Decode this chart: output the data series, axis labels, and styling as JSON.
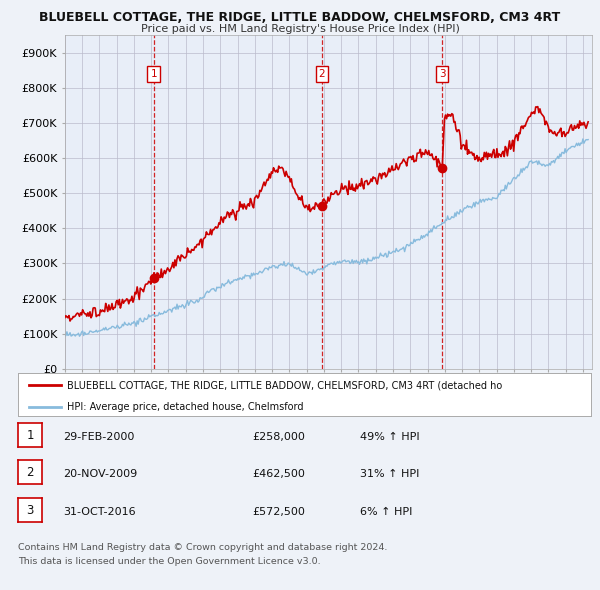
{
  "title1": "BLUEBELL COTTAGE, THE RIDGE, LITTLE BADDOW, CHELMSFORD, CM3 4RT",
  "title2": "Price paid vs. HM Land Registry's House Price Index (HPI)",
  "bg_color": "#eef2f8",
  "plot_bg": "#e8eef8",
  "sale_dates_num": [
    2000.16,
    2009.89,
    2016.84
  ],
  "sale_prices": [
    258000,
    462500,
    572500
  ],
  "sale_labels": [
    "1",
    "2",
    "3"
  ],
  "legend_line1": "BLUEBELL COTTAGE, THE RIDGE, LITTLE BADDOW, CHELMSFORD, CM3 4RT (detached ho",
  "legend_line2": "HPI: Average price, detached house, Chelmsford",
  "table_rows": [
    [
      "1",
      "29-FEB-2000",
      "£258,000",
      "49% ↑ HPI"
    ],
    [
      "2",
      "20-NOV-2009",
      "£462,500",
      "31% ↑ HPI"
    ],
    [
      "3",
      "31-OCT-2016",
      "£572,500",
      "6% ↑ HPI"
    ]
  ],
  "footnote1": "Contains HM Land Registry data © Crown copyright and database right 2024.",
  "footnote2": "This data is licensed under the Open Government Licence v3.0.",
  "ylabel_ticks": [
    0,
    100000,
    200000,
    300000,
    400000,
    500000,
    600000,
    700000,
    800000,
    900000
  ],
  "ylabel_labels": [
    "£0",
    "£100K",
    "£200K",
    "£300K",
    "£400K",
    "£500K",
    "£600K",
    "£700K",
    "£800K",
    "£900K"
  ],
  "xmin": 1995.0,
  "xmax": 2025.5,
  "ymin": 0,
  "ymax": 950000,
  "red_color": "#cc0000",
  "blue_color": "#88bbdd",
  "vline_color": "#cc0000",
  "grid_color": "#bbbbcc",
  "hpi_x_nodes": [
    1995,
    1996,
    1997,
    1998,
    1999,
    2000,
    2001,
    2002,
    2003,
    2004,
    2005,
    2006,
    2007,
    2008,
    2009,
    2010,
    2011,
    2012,
    2013,
    2014,
    2015,
    2016,
    2017,
    2018,
    2019,
    2020,
    2021,
    2022,
    2023,
    2024,
    2025
  ],
  "hpi_y_nodes": [
    95000,
    100000,
    108000,
    118000,
    130000,
    148000,
    165000,
    183000,
    205000,
    235000,
    255000,
    270000,
    290000,
    300000,
    270000,
    290000,
    305000,
    305000,
    315000,
    330000,
    355000,
    385000,
    420000,
    450000,
    475000,
    490000,
    540000,
    590000,
    580000,
    620000,
    650000
  ],
  "red_x_nodes": [
    1995,
    1996,
    1997,
    1998,
    1999,
    2000.16,
    2001,
    2002,
    2003,
    2004,
    2005,
    2006,
    2007,
    2007.5,
    2008,
    2008.5,
    2009,
    2009.89,
    2010,
    2011,
    2012,
    2013,
    2014,
    2015,
    2016,
    2016.84,
    2017,
    2017.3,
    2018,
    2019,
    2020,
    2021,
    2022,
    2022.5,
    2023,
    2024,
    2025
  ],
  "red_y_nodes": [
    148000,
    155000,
    165000,
    178000,
    205000,
    258000,
    285000,
    320000,
    370000,
    420000,
    455000,
    480000,
    560000,
    575000,
    540000,
    490000,
    460000,
    462500,
    480000,
    510000,
    520000,
    540000,
    570000,
    600000,
    620000,
    572500,
    720000,
    735000,
    640000,
    600000,
    610000,
    640000,
    730000,
    740000,
    680000,
    670000,
    700000
  ]
}
